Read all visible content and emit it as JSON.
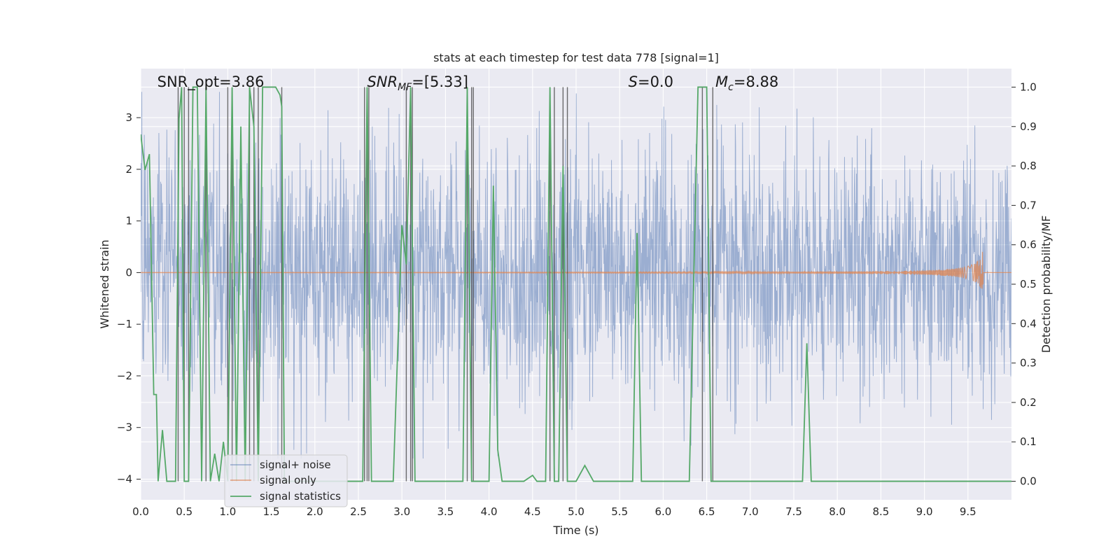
{
  "chart_data": {
    "type": "line",
    "title": "stats at each timestep for test data 778 [signal=1]",
    "xlabel": "Time (s)",
    "ylabel_left": "Whitened strain",
    "ylabel_right": "Detection probability/MF",
    "xlim": [
      0.0,
      10.0
    ],
    "ylim_left": [
      -4.4,
      3.95
    ],
    "ylim_right": [
      -0.047,
      1.047
    ],
    "xticks": [
      "0.0",
      "0.5",
      "1.0",
      "1.5",
      "2.0",
      "2.5",
      "3.0",
      "3.5",
      "4.0",
      "4.5",
      "5.0",
      "5.5",
      "6.0",
      "6.5",
      "7.0",
      "7.5",
      "8.0",
      "8.5",
      "9.0",
      "9.5"
    ],
    "yticks_left": [
      "-4",
      "-3",
      "-2",
      "-1",
      "0",
      "1",
      "2",
      "3"
    ],
    "yticks_right": [
      "0.0",
      "0.1",
      "0.2",
      "0.3",
      "0.4",
      "0.5",
      "0.6",
      "0.7",
      "0.8",
      "0.9",
      "1.0"
    ],
    "grid": true,
    "legend_position": "lower-left",
    "colors": {
      "background": "#eaeaf2",
      "grid": "#ffffff",
      "noise": "#4c72b0",
      "signal": "#dd8452",
      "stats": "#55a868",
      "vlines": "#4a4a4a"
    },
    "annotations": [
      {
        "id": "snr-opt",
        "prefix": "SNR_opt=",
        "value": "3.86",
        "x": 0.19
      },
      {
        "id": "snr-mf",
        "prefix": "SNR",
        "sub": "MF",
        "suffix": "=[5.33]",
        "x": 2.6
      },
      {
        "id": "stat-s",
        "prefix": "S",
        "suffix": "=0.0",
        "x": 5.6
      },
      {
        "id": "chirp-mass",
        "prefix": "M",
        "sub": "c",
        "suffix": "=8.88",
        "x": 6.6
      }
    ],
    "series": [
      {
        "name": "signal+ noise",
        "kind": "noise"
      },
      {
        "name": "signal only",
        "kind": "signal",
        "chirp_end": 9.68,
        "peak_amplitude": 0.5
      },
      {
        "name": "signal statistics",
        "kind": "stats",
        "x": [
          0.0,
          0.05,
          0.1,
          0.15,
          0.18,
          0.2,
          0.25,
          0.3,
          0.35,
          0.4,
          0.44,
          0.47,
          0.5,
          0.55,
          0.6,
          0.65,
          0.7,
          0.75,
          0.8,
          0.85,
          0.9,
          0.95,
          1.0,
          1.05,
          1.1,
          1.15,
          1.2,
          1.25,
          1.3,
          1.35,
          1.4,
          1.45,
          1.5,
          1.55,
          1.6,
          1.62,
          1.65,
          1.7,
          2.0,
          2.3,
          2.4,
          2.5,
          2.55,
          2.6,
          2.65,
          2.7,
          2.8,
          2.9,
          3.0,
          3.05,
          3.1,
          3.15,
          3.2,
          3.3,
          3.5,
          3.7,
          3.75,
          3.8,
          3.85,
          3.9,
          4.0,
          4.05,
          4.1,
          4.15,
          4.2,
          4.3,
          4.4,
          4.5,
          4.55,
          4.6,
          4.65,
          4.7,
          4.75,
          4.8,
          4.85,
          4.9,
          4.95,
          5.0,
          5.1,
          5.2,
          5.25,
          5.3,
          5.5,
          5.6,
          5.65,
          5.7,
          5.75,
          5.8,
          6.0,
          6.3,
          6.4,
          6.45,
          6.5,
          6.55,
          6.6,
          6.7,
          7.0,
          7.5,
          7.6,
          7.65,
          7.7,
          7.75,
          7.8,
          8.0,
          9.0,
          10.0
        ],
        "y": [
          0.88,
          0.79,
          0.83,
          0.22,
          0.22,
          0.0,
          0.13,
          0.0,
          0.0,
          0.0,
          0.92,
          1.0,
          0.0,
          0.0,
          1.0,
          1.0,
          0.0,
          1.0,
          0.0,
          0.07,
          0.0,
          0.1,
          0.0,
          1.0,
          0.0,
          0.9,
          0.0,
          1.0,
          0.9,
          0.0,
          1.0,
          1.0,
          1.0,
          1.0,
          0.98,
          0.95,
          0.0,
          0.0,
          0.0,
          0.0,
          0.0,
          0.0,
          0.0,
          1.0,
          0.0,
          0.0,
          0.0,
          0.0,
          0.65,
          0.55,
          1.0,
          0.0,
          0.0,
          0.0,
          0.0,
          0.0,
          1.0,
          0.0,
          0.0,
          0.0,
          0.0,
          0.75,
          0.08,
          0.0,
          0.0,
          0.0,
          0.0,
          0.015,
          0.0,
          0.0,
          0.0,
          1.0,
          0.0,
          0.0,
          0.8,
          0.0,
          0.0,
          0.0,
          0.04,
          0.0,
          0.0,
          0.0,
          0.0,
          0.0,
          0.0,
          0.63,
          0.0,
          0.0,
          0.0,
          0.0,
          1.0,
          1.0,
          1.0,
          0.0,
          0.0,
          0.0,
          0.0,
          0.0,
          0.0,
          0.35,
          0.0,
          0.0,
          0.0,
          0.0,
          0.0,
          0.0
        ]
      }
    ],
    "vlines_x": [
      0.43,
      0.5,
      0.55,
      0.75,
      1.0,
      1.05,
      1.25,
      1.3,
      1.35,
      1.62,
      2.57,
      2.6,
      2.62,
      3.05,
      3.1,
      3.12,
      3.75,
      3.8,
      3.82,
      4.7,
      4.75,
      4.85,
      4.9,
      6.45,
      6.57
    ]
  }
}
